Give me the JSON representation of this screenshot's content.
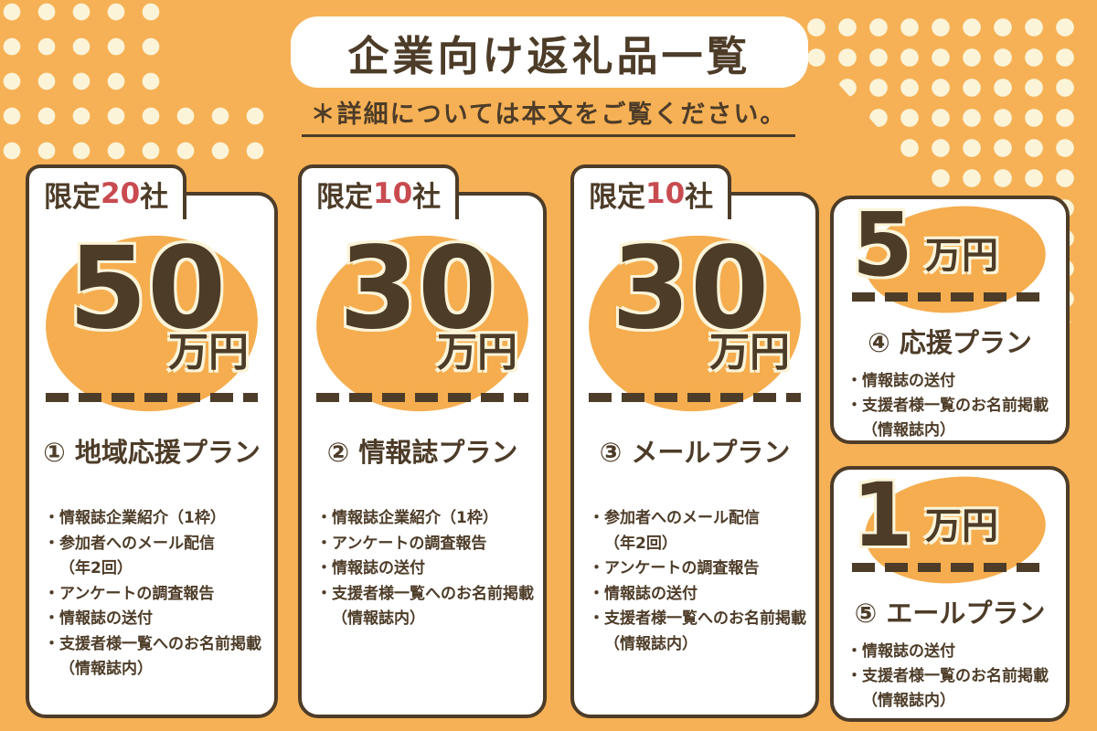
{
  "header": {
    "title": "企業向け返礼品一覧",
    "note": "＊詳細については本文をご覧ください。"
  },
  "colors": {
    "background_orange": "#F6B156",
    "dot_cream": "#FBF4D8",
    "ink_brown": "#4D3C28",
    "badge_red": "#C84B50",
    "ellipse_orange": "#F5AD4F",
    "card_white": "#FFFFFF"
  },
  "plans": [
    {
      "badge": {
        "prefix": "限定",
        "count": "20",
        "suffix": "社"
      },
      "price": {
        "amount": "50",
        "unit": "万円"
      },
      "name": "① 地域応援プラン",
      "features": [
        "・情報誌企業紹介（1枠）",
        "・参加者へのメール配信\n（年2回）",
        "・アンケートの調査報告",
        "・情報誌の送付",
        "・支援者様一覧へのお名前掲載\n（情報誌内）"
      ]
    },
    {
      "badge": {
        "prefix": "限定",
        "count": "10",
        "suffix": "社"
      },
      "price": {
        "amount": "30",
        "unit": "万円"
      },
      "name": "② 情報誌プラン",
      "features": [
        "・情報誌企業紹介（1枠）",
        "・アンケートの調査報告",
        "・情報誌の送付",
        "・支援者様一覧へのお名前掲載\n（情報誌内）"
      ]
    },
    {
      "badge": {
        "prefix": "限定",
        "count": "10",
        "suffix": "社"
      },
      "price": {
        "amount": "30",
        "unit": "万円"
      },
      "name": "③ メールプラン",
      "features": [
        "・参加者へのメール配信\n（年2回）",
        "・アンケートの調査報告",
        "・情報誌の送付",
        "・支援者様一覧へのお名前掲載\n（情報誌内）"
      ]
    },
    {
      "price": {
        "amount": "5",
        "unit": "万円"
      },
      "name": "④ 応援プラン",
      "features": [
        "・情報誌の送付",
        "・支援者様一覧のお名前掲載\n（情報誌内）"
      ]
    },
    {
      "price": {
        "amount": "1",
        "unit": "万円"
      },
      "name": "⑤ エールプラン",
      "features": [
        "・情報誌の送付",
        "・支援者様一覧のお名前掲載\n（情報誌内）"
      ]
    }
  ]
}
